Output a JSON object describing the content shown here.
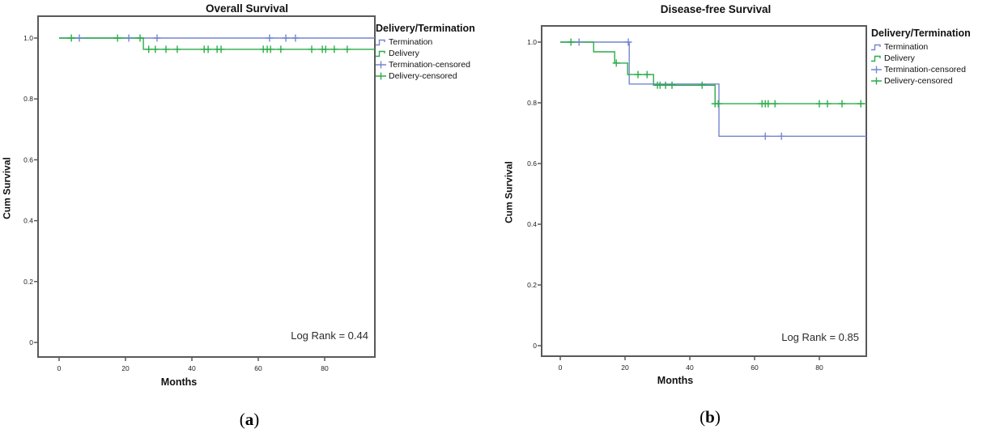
{
  "colors": {
    "termination": "#7486cf",
    "delivery": "#2bac49",
    "frame": "#595959",
    "tick_text": "#222222"
  },
  "legend": {
    "title": "Delivery/Termination",
    "items": [
      {
        "label": "Termination",
        "glyph": "step-line",
        "color": "termination"
      },
      {
        "label": "Delivery",
        "glyph": "step-line",
        "color": "delivery"
      },
      {
        "label": "Termination-censored",
        "glyph": "plus-line",
        "color": "termination"
      },
      {
        "label": "Delivery-censored",
        "glyph": "plus-line",
        "color": "delivery"
      }
    ]
  },
  "chart_data": [
    {
      "type": "line",
      "subtype": "kaplan-meier-step",
      "title": "Overall Survival",
      "xlabel": "Months",
      "ylabel": "Cum Survival",
      "annotation": "Log Rank = 0.44",
      "caption": {
        "open": "(",
        "letter": "a",
        "close": ")"
      },
      "xlim": [
        0,
        95
      ],
      "ylim": [
        0,
        1.0
      ],
      "x_ticks": [
        {
          "value": 0,
          "label": "0"
        },
        {
          "value": 20,
          "label": "20"
        },
        {
          "value": 40,
          "label": "40"
        },
        {
          "value": 60,
          "label": "60"
        },
        {
          "value": 80,
          "label": "80"
        }
      ],
      "y_ticks": [
        {
          "value": 0,
          "label": "0"
        },
        {
          "value": 0.2,
          "label": "0.2"
        },
        {
          "value": 0.4,
          "label": "0.4"
        },
        {
          "value": 0.6,
          "label": "0.6"
        },
        {
          "value": 0.8,
          "label": "0.8"
        },
        {
          "value": 1.0,
          "label": "1.0"
        }
      ],
      "series": [
        {
          "name": "Termination",
          "color": "termination",
          "points": [
            [
              0,
              1.0
            ],
            [
              95.1,
              1.0
            ]
          ],
          "censored": [
            [
              6.1,
              1.0
            ],
            [
              21,
              1.0
            ],
            [
              29.5,
              1.0
            ],
            [
              63.4,
              1.0
            ],
            [
              68.3,
              1.0
            ],
            [
              71.2,
              1.0
            ]
          ]
        },
        {
          "name": "Delivery",
          "color": "delivery",
          "points": [
            [
              0,
              1.0
            ],
            [
              25.4,
              1.0
            ],
            [
              25.4,
              0.963
            ],
            [
              95.1,
              0.963
            ]
          ],
          "censored": [
            [
              3.7,
              1.0
            ],
            [
              17.6,
              1.0
            ],
            [
              24.4,
              1.0
            ],
            [
              27,
              0.963
            ],
            [
              29,
              0.963
            ],
            [
              32.2,
              0.963
            ],
            [
              35.6,
              0.963
            ],
            [
              43.7,
              0.963
            ],
            [
              44.9,
              0.963
            ],
            [
              47.6,
              0.963
            ],
            [
              48.8,
              0.963
            ],
            [
              61.5,
              0.963
            ],
            [
              62.7,
              0.963
            ],
            [
              63.7,
              0.963
            ],
            [
              66.8,
              0.963
            ],
            [
              76.1,
              0.963
            ],
            [
              79.3,
              0.963
            ],
            [
              80.3,
              0.963
            ],
            [
              82.9,
              0.963
            ],
            [
              86.8,
              0.963
            ]
          ]
        }
      ]
    },
    {
      "type": "line",
      "subtype": "kaplan-meier-step",
      "title": "Disease-free Survival",
      "xlabel": "Months",
      "ylabel": "Cum Survival",
      "annotation": "Log Rank = 0.85",
      "caption": {
        "open": "(",
        "letter": "b",
        "close": ")"
      },
      "xlim": [
        0,
        94.5
      ],
      "ylim": [
        0,
        1.0
      ],
      "x_ticks": [
        {
          "value": 0,
          "label": "0"
        },
        {
          "value": 20,
          "label": "20"
        },
        {
          "value": 40,
          "label": "40"
        },
        {
          "value": 60,
          "label": "60"
        },
        {
          "value": 80,
          "label": "80"
        }
      ],
      "y_ticks": [
        {
          "value": 0,
          "label": "0"
        },
        {
          "value": 0.2,
          "label": "0.2"
        },
        {
          "value": 0.4,
          "label": "0.4"
        },
        {
          "value": 0.6,
          "label": "0.6"
        },
        {
          "value": 0.8,
          "label": "0.8"
        },
        {
          "value": 1.0,
          "label": "1.0"
        }
      ],
      "series": [
        {
          "name": "Termination",
          "color": "termination",
          "points": [
            [
              0,
              1.0
            ],
            [
              21.3,
              1.0
            ],
            [
              21.3,
              0.862
            ],
            [
              49,
              0.862
            ],
            [
              49,
              0.69
            ],
            [
              94.5,
              0.69
            ]
          ],
          "censored": [
            [
              5.8,
              1.0
            ],
            [
              21,
              1.0
            ],
            [
              63.3,
              0.69
            ],
            [
              68.3,
              0.69
            ]
          ]
        },
        {
          "name": "Delivery",
          "color": "delivery",
          "points": [
            [
              0,
              1.0
            ],
            [
              10.3,
              1.0
            ],
            [
              10.3,
              0.968
            ],
            [
              16.8,
              0.968
            ],
            [
              16.8,
              0.931
            ],
            [
              20.8,
              0.931
            ],
            [
              20.8,
              0.893
            ],
            [
              28.8,
              0.893
            ],
            [
              28.8,
              0.858
            ],
            [
              47.8,
              0.858
            ],
            [
              47.8,
              0.797
            ],
            [
              94.5,
              0.797
            ]
          ],
          "censored": [
            [
              3.3,
              1.0
            ],
            [
              17.3,
              0.931
            ],
            [
              24,
              0.893
            ],
            [
              26.8,
              0.893
            ],
            [
              30,
              0.858
            ],
            [
              30.8,
              0.858
            ],
            [
              32.5,
              0.858
            ],
            [
              34.5,
              0.858
            ],
            [
              43.8,
              0.858
            ],
            [
              47.8,
              0.797
            ],
            [
              48.8,
              0.797
            ],
            [
              62.3,
              0.797
            ],
            [
              63.3,
              0.797
            ],
            [
              64.2,
              0.797
            ],
            [
              66.3,
              0.797
            ],
            [
              80,
              0.797
            ],
            [
              82.5,
              0.797
            ],
            [
              87,
              0.797
            ],
            [
              92.8,
              0.797
            ]
          ]
        }
      ]
    }
  ]
}
